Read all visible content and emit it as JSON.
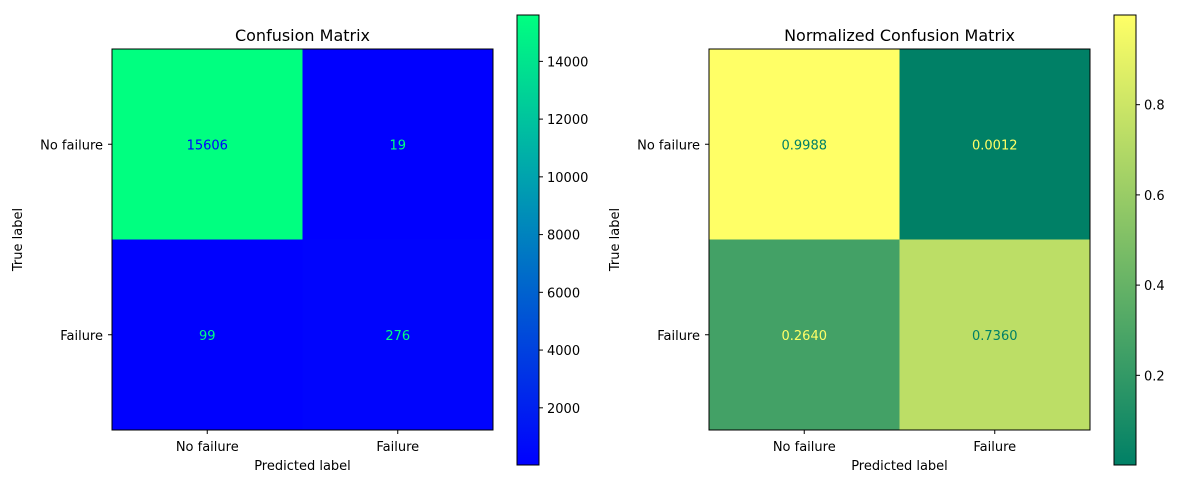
{
  "chart_data": [
    {
      "type": "heatmap",
      "title": "Confusion Matrix",
      "xlabel": "Predicted label",
      "ylabel": "True label",
      "x_categories": [
        "No failure",
        "Failure"
      ],
      "y_categories": [
        "No failure",
        "Failure"
      ],
      "values": [
        [
          15606,
          19
        ],
        [
          99,
          276
        ]
      ],
      "cell_labels": [
        [
          "15606",
          "19"
        ],
        [
          "99",
          "276"
        ]
      ],
      "colormap": "winter",
      "colormap_stops": [
        "#0000ff",
        "#00ff80"
      ],
      "text_colors": {
        "on_low": "#00ff80",
        "on_high": "#0000ff"
      },
      "colorbar": {
        "range": [
          19,
          15606
        ],
        "ticks": [
          2000,
          4000,
          6000,
          8000,
          10000,
          12000,
          14000
        ],
        "tick_labels": [
          "2000",
          "4000",
          "6000",
          "8000",
          "10000",
          "12000",
          "14000"
        ]
      }
    },
    {
      "type": "heatmap",
      "title": "Normalized Confusion Matrix",
      "xlabel": "Predicted label",
      "ylabel": "True label",
      "x_categories": [
        "No failure",
        "Failure"
      ],
      "y_categories": [
        "No failure",
        "Failure"
      ],
      "values": [
        [
          0.9988,
          0.0012
        ],
        [
          0.264,
          0.736
        ]
      ],
      "cell_labels": [
        [
          "0.9988",
          "0.0012"
        ],
        [
          "0.2640",
          "0.7360"
        ]
      ],
      "colormap": "summer",
      "colormap_stops": [
        "#008066",
        "#ffff66"
      ],
      "text_colors": {
        "on_low": "#ffff66",
        "on_high": "#008066"
      },
      "colorbar": {
        "range": [
          0.0012,
          0.9988
        ],
        "ticks": [
          0.2,
          0.4,
          0.6,
          0.8
        ],
        "tick_labels": [
          "0.2",
          "0.4",
          "0.6",
          "0.8"
        ]
      }
    }
  ]
}
